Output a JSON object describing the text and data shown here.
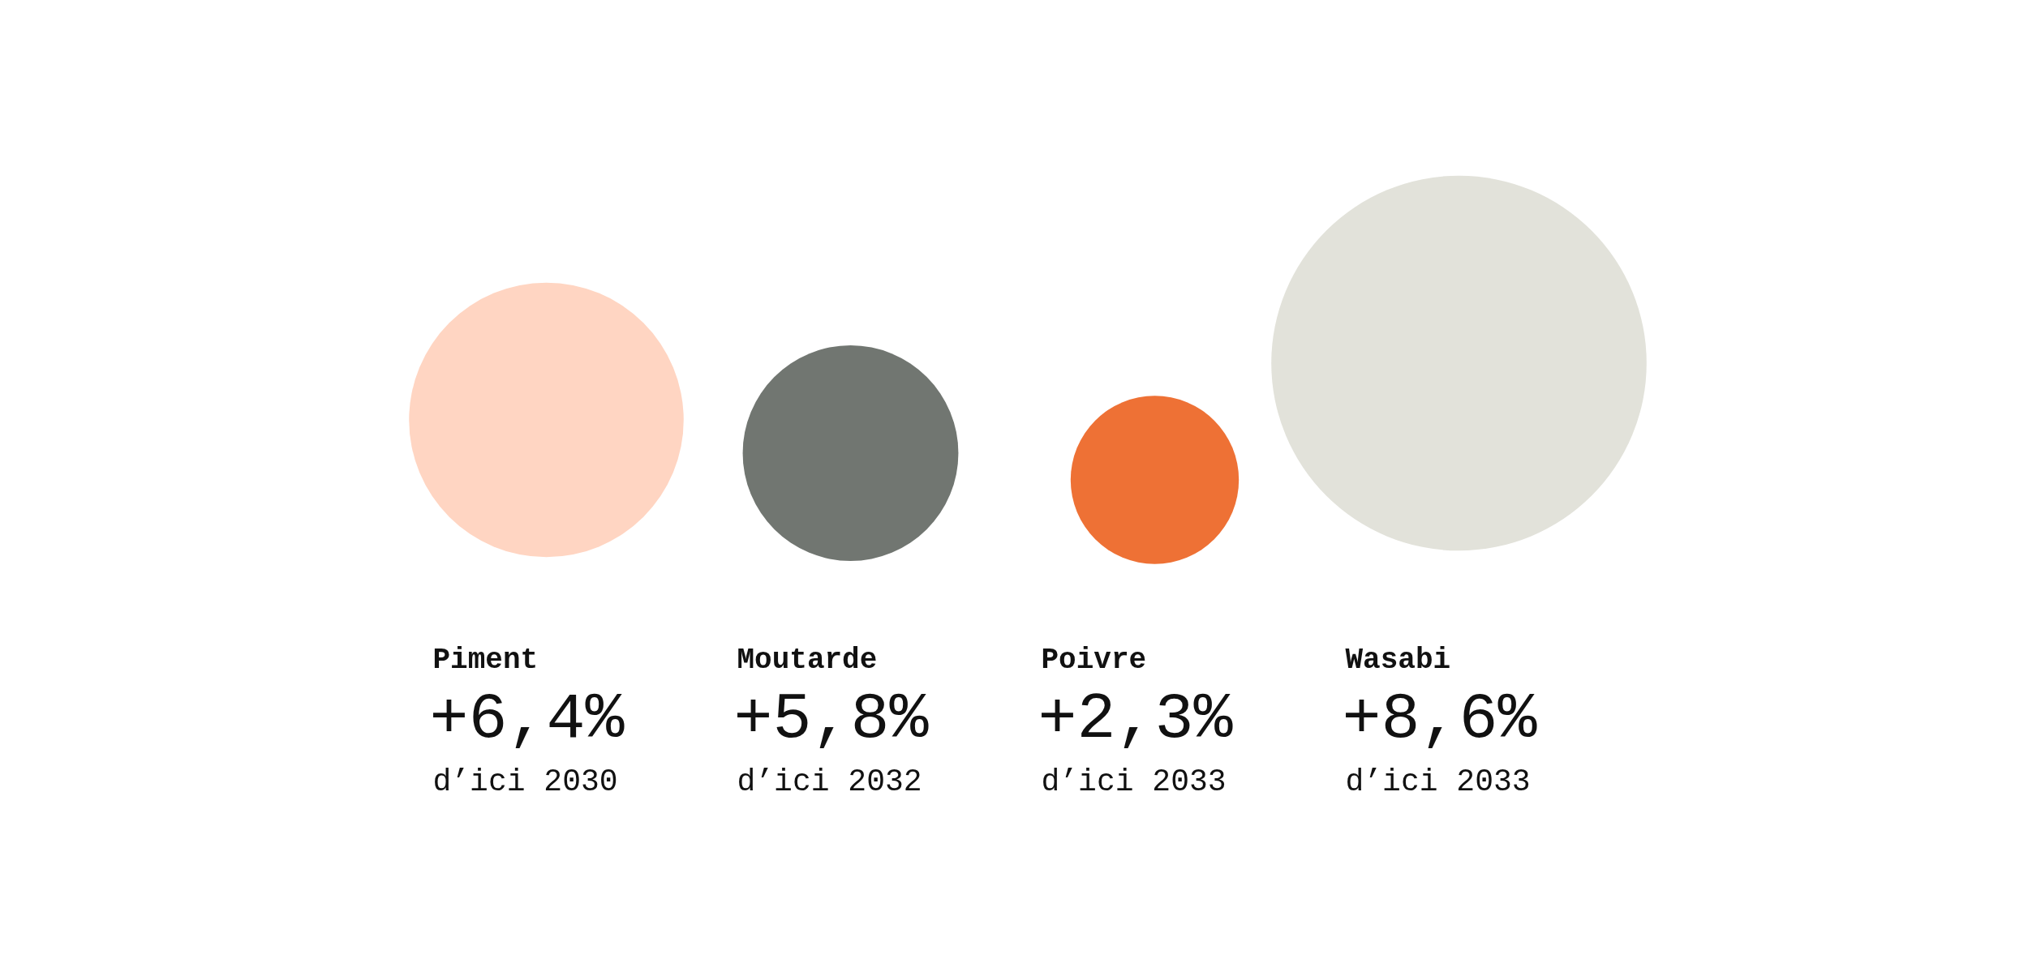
{
  "chart_data": {
    "type": "other",
    "categories": [
      "Piment",
      "Moutarde",
      "Poivre",
      "Wasabi"
    ],
    "values": [
      6.4,
      5.8,
      2.3,
      8.6
    ],
    "value_labels": [
      "+6,4%",
      "+5,8%",
      "+2,3%",
      "+8,6%"
    ],
    "colors": [
      "#ffd5c2",
      "#717671",
      "#ee7135",
      "#e2e2da"
    ],
    "annotations": [
      {
        "text": "d’ici 2030",
        "x": "Piment"
      },
      {
        "text": "d’ici 2032",
        "x": "Moutarde"
      },
      {
        "text": "d’ici 2033",
        "x": "Poivre"
      },
      {
        "text": "d’ici 2033",
        "x": "Wasabi"
      }
    ]
  }
}
